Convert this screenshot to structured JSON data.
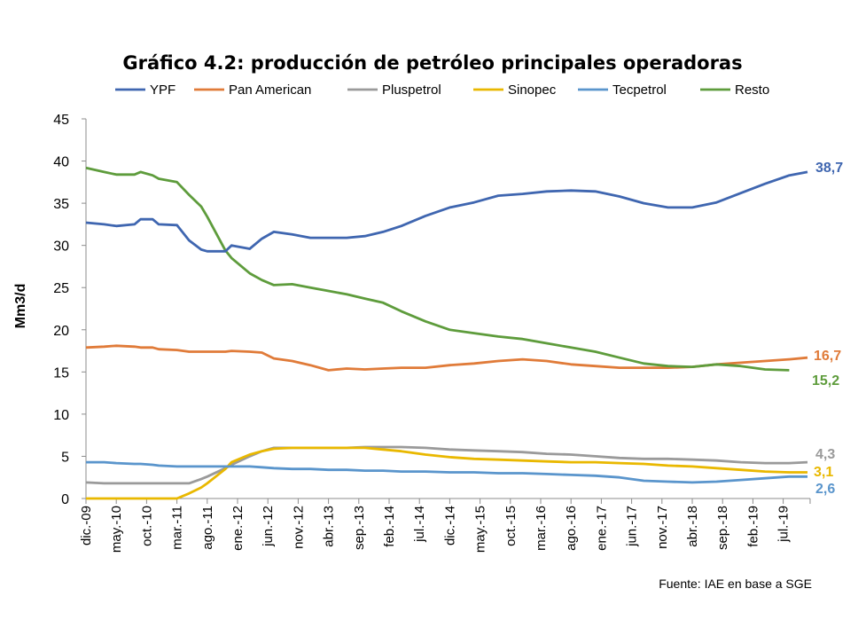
{
  "chart_data": {
    "type": "line",
    "title": "Gráfico 4.2: producción de petróleo principales operadoras",
    "ylabel": "Mm3/d",
    "xlabel": "",
    "ylim": [
      0,
      45
    ],
    "yticks": [
      0,
      5,
      10,
      15,
      20,
      25,
      30,
      35,
      40,
      45
    ],
    "xtick_labels": [
      "dic.-09",
      "may.-10",
      "oct.-10",
      "mar.-11",
      "ago.-11",
      "ene.-12",
      "jun.-12",
      "nov.-12",
      "abr.-13",
      "sep.-13",
      "feb.-14",
      "jul.-14",
      "dic.-14",
      "may.-15",
      "oct.-15",
      "mar.-16",
      "ago.-16",
      "ene.-17",
      "jun.-17",
      "nov.-17",
      "abr.-18",
      "sep.-18",
      "feb.-19",
      "jul.-19"
    ],
    "grid": false,
    "legend": "top",
    "source": "Fuente: IAE en base a SGE",
    "x": [
      "2009-12",
      "2010-03",
      "2010-05",
      "2010-08",
      "2010-09",
      "2010-11",
      "2010-12",
      "2011-03",
      "2011-05",
      "2011-07",
      "2011-08",
      "2011-11",
      "2011-12",
      "2012-03",
      "2012-05",
      "2012-07",
      "2012-10",
      "2013-01",
      "2013-04",
      "2013-07",
      "2013-10",
      "2014-01",
      "2014-04",
      "2014-08",
      "2014-12",
      "2015-04",
      "2015-08",
      "2015-12",
      "2016-04",
      "2016-08",
      "2016-12",
      "2017-04",
      "2017-08",
      "2017-12",
      "2018-04",
      "2018-08",
      "2018-12",
      "2019-04",
      "2019-08",
      "2019-11"
    ],
    "series": [
      {
        "name": "YPF",
        "color": "#3f66b0",
        "end_label": "38,7",
        "values": [
          32.7,
          32.5,
          32.3,
          32.5,
          33.1,
          33.1,
          32.5,
          32.4,
          30.6,
          29.5,
          29.3,
          29.3,
          30.0,
          29.6,
          30.8,
          31.6,
          31.3,
          30.9,
          30.9,
          30.9,
          31.1,
          31.6,
          32.3,
          33.5,
          34.5,
          35.1,
          35.9,
          36.1,
          36.4,
          36.5,
          36.4,
          35.8,
          35.0,
          34.5,
          34.5,
          35.1,
          36.2,
          37.3,
          38.3,
          38.7
        ]
      },
      {
        "name": "Pan American",
        "color": "#e07b39",
        "end_label": "16,7",
        "values": [
          17.9,
          18.0,
          18.1,
          18.0,
          17.9,
          17.9,
          17.7,
          17.6,
          17.4,
          17.4,
          17.4,
          17.4,
          17.5,
          17.4,
          17.3,
          16.6,
          16.3,
          15.8,
          15.2,
          15.4,
          15.3,
          15.4,
          15.5,
          15.5,
          15.8,
          16.0,
          16.3,
          16.5,
          16.3,
          15.9,
          15.7,
          15.5,
          15.5,
          15.5,
          15.6,
          15.9,
          16.1,
          16.3,
          16.5,
          16.7
        ]
      },
      {
        "name": "Pluspetrol",
        "color": "#9a9a9a",
        "end_label": "4,3",
        "values": [
          1.9,
          1.8,
          1.8,
          1.8,
          1.8,
          1.8,
          1.8,
          1.8,
          1.8,
          2.3,
          2.6,
          3.6,
          4.0,
          5.0,
          5.6,
          6.0,
          6.0,
          6.0,
          6.0,
          6.0,
          6.1,
          6.1,
          6.1,
          6.0,
          5.8,
          5.7,
          5.6,
          5.5,
          5.3,
          5.2,
          5.0,
          4.8,
          4.7,
          4.7,
          4.6,
          4.5,
          4.3,
          4.2,
          4.2,
          4.3
        ]
      },
      {
        "name": "Sinopec",
        "color": "#e9b800",
        "end_label": "3,1",
        "values": [
          0,
          0,
          0,
          0,
          0,
          0,
          0,
          0,
          0.6,
          1.3,
          1.8,
          3.5,
          4.3,
          5.2,
          5.6,
          5.9,
          6.0,
          6.0,
          6.0,
          6.0,
          6.0,
          5.8,
          5.6,
          5.2,
          4.9,
          4.7,
          4.6,
          4.5,
          4.4,
          4.3,
          4.3,
          4.2,
          4.1,
          3.9,
          3.8,
          3.6,
          3.4,
          3.2,
          3.1,
          3.1
        ]
      },
      {
        "name": "Tecpetrol",
        "color": "#5a95cc",
        "end_label": "2,6",
        "values": [
          4.3,
          4.3,
          4.2,
          4.1,
          4.1,
          4.0,
          3.9,
          3.8,
          3.8,
          3.8,
          3.8,
          3.8,
          3.8,
          3.8,
          3.7,
          3.6,
          3.5,
          3.5,
          3.4,
          3.4,
          3.3,
          3.3,
          3.2,
          3.2,
          3.1,
          3.1,
          3.0,
          3.0,
          2.9,
          2.8,
          2.7,
          2.5,
          2.1,
          2.0,
          1.9,
          2.0,
          2.2,
          2.4,
          2.6,
          2.6
        ]
      },
      {
        "name": "Resto",
        "color": "#5e9c3c",
        "end_label": "15,2",
        "values": [
          39.2,
          38.7,
          38.4,
          38.4,
          38.7,
          38.3,
          37.9,
          37.5,
          36.0,
          34.6,
          33.4,
          29.4,
          28.5,
          26.7,
          25.9,
          25.3,
          25.4,
          25.0,
          24.6,
          24.2,
          23.7,
          23.2,
          22.2,
          21.0,
          20.0,
          19.6,
          19.2,
          18.9,
          18.4,
          17.9,
          17.4,
          16.7,
          16.0,
          15.7,
          15.6,
          15.9,
          15.7,
          15.3,
          15.2,
          null
        ]
      }
    ]
  }
}
